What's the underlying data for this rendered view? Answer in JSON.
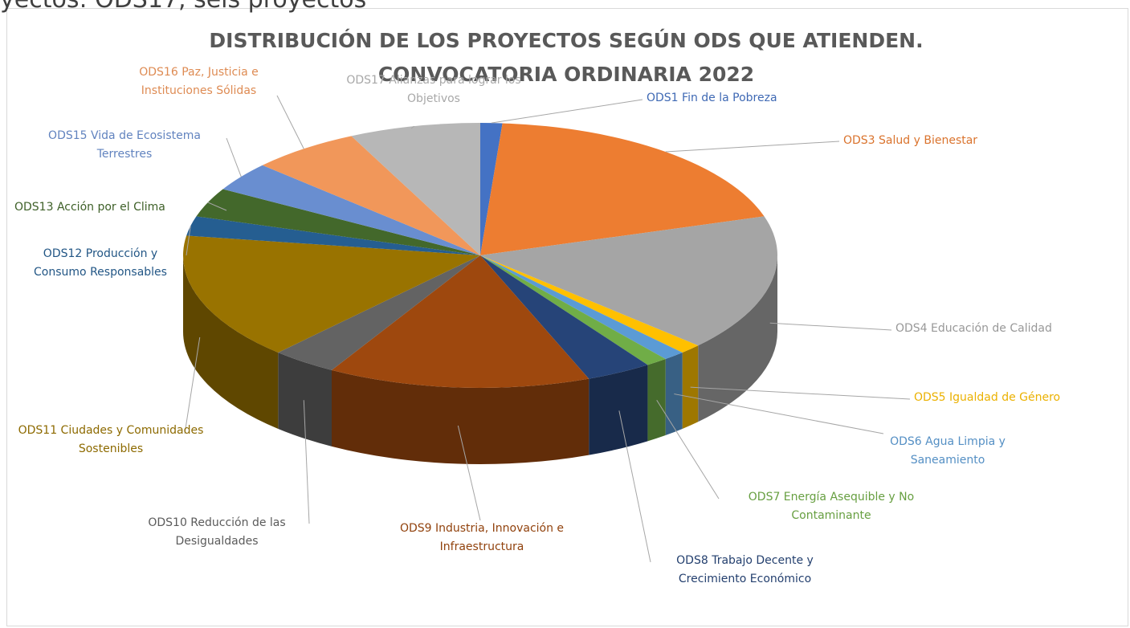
{
  "cropped_text": "yectos: ODS17, seis proyectos",
  "chart_data": {
    "type": "pie3d",
    "title": "DISTRIBUCIÓN DE LOS PROYECTOS  SEGÚN ODS QUE ATIENDEN. CONVOCATORIA  ORDINARIA 2022",
    "categories": [
      "ODS1 Fin de la Pobreza",
      "ODS3 Salud  y Bienestar",
      "ODS4 Educación  de Calidad",
      "ODS5 Igualdad  de Género",
      "ODS6 Agua  Limpia y Saneamiento",
      "ODS7 Energía  Asequible y No Contaminante",
      "ODS8 Trabajo  Decente y Crecimiento Económico",
      "ODS9 Industria, Innovación  e Infraestructura",
      "ODS10 Reducción  de las Desigualdades",
      "ODS11 Ciudades  y Comunidades  Sostenibles",
      "ODS12 Producción  y Consumo Responsables",
      "ODS13 Acción  por el Clima",
      "ODS15 Vida de Ecosistema Terrestres",
      "ODS16 Paz, Justicia e Instituciones Sólidas",
      "ODS17 Alianzas  para lograr los Objetivos"
    ],
    "values": [
      1,
      16,
      14,
      1,
      1,
      1,
      3,
      12,
      3,
      13,
      2,
      3,
      3,
      5,
      6
    ],
    "colors": [
      "#4472c4",
      "#ed7d31",
      "#a5a5a5",
      "#ffc000",
      "#5b9bd5",
      "#70ad47",
      "#264478",
      "#9e480e",
      "#636363",
      "#997300",
      "#255e91",
      "#43682b",
      "#698ed0",
      "#f1975a",
      "#b7b7b7"
    ]
  }
}
